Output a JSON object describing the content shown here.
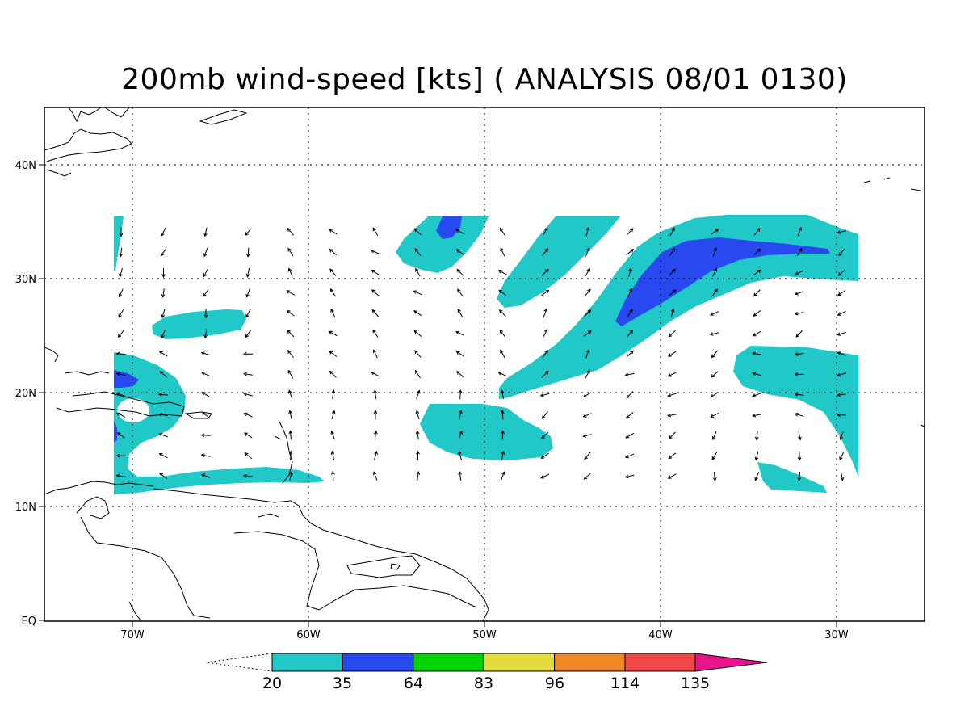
{
  "title": "200mb wind-speed [kts] ( ANALYSIS 08/01 0130)",
  "lat_labels": [
    "EQ",
    "10N",
    "20N",
    "30N",
    "40N"
  ],
  "lon_labels": [
    "70W",
    "60W",
    "50W",
    "40W",
    "30W"
  ],
  "colorbar": {
    "labels": [
      "20",
      "35",
      "64",
      "83",
      "96",
      "114",
      "135"
    ],
    "colors": [
      "#20c8c8",
      "#2848f0",
      "#00d400",
      "#e4dc3c",
      "#f08828",
      "#f04848",
      "#e8148c"
    ]
  },
  "map": {
    "lon_range": [
      -75,
      -25
    ],
    "lat_range": [
      0,
      45
    ],
    "grid": true,
    "fill_colors": {
      "band_20_35": "#20c8c8",
      "band_35_64": "#2848f0"
    }
  }
}
